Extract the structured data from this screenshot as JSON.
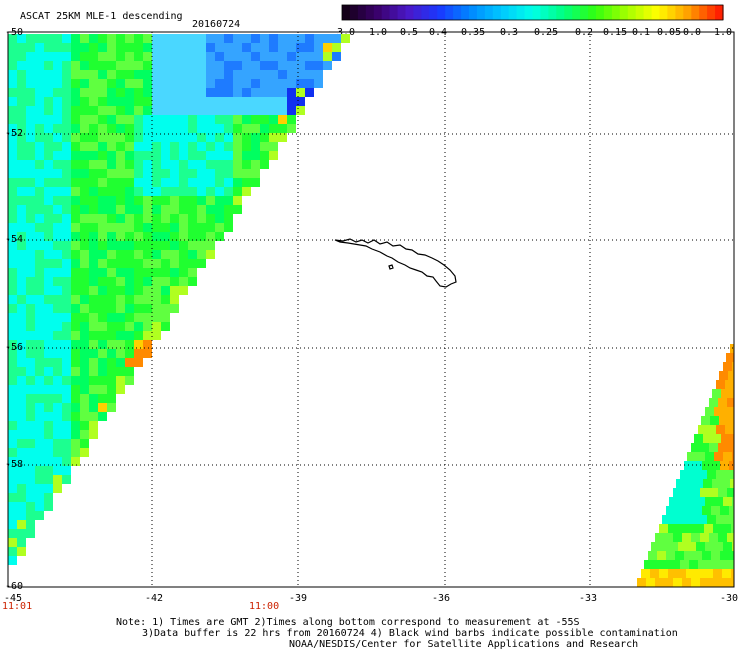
{
  "header": {
    "title": "ASCAT 25KM MLE-1 descending",
    "date": "20160724"
  },
  "colorbar": {
    "ticks": [
      "-3.0",
      "-1.0",
      "-0.5",
      "-0.4",
      "-0.35",
      "-0.3",
      "-0.25",
      "-0.2",
      "-0.15",
      "-0.1",
      "-0.05",
      "0.0",
      "1.0"
    ],
    "colors": [
      "#140018",
      "#3a006a",
      "#4b18c8",
      "#1a38ff",
      "#0088ff",
      "#00c8ff",
      "#00ffe8",
      "#00ff80",
      "#30ff10",
      "#a0ff00",
      "#ffff00",
      "#ffa000",
      "#ff2000"
    ]
  },
  "map": {
    "lat_labels": [
      "-50",
      "-52",
      "-54",
      "-56",
      "-58",
      "-60"
    ],
    "lon_labels": [
      "-45",
      "-42",
      "-39",
      "-36",
      "-33",
      "-30"
    ],
    "time_labels": [
      "11:01",
      "11:00"
    ]
  },
  "notes": {
    "line1": "Note: 1) Times are GMT 2)Times along bottom correspond to measurement at -55S",
    "line2": "3)Data buffer is 22 hrs from 20160724 4) Black wind barbs indicate possible contamination",
    "line3": "NOAA/NESDIS/Center for Satellite Applications and Research"
  }
}
